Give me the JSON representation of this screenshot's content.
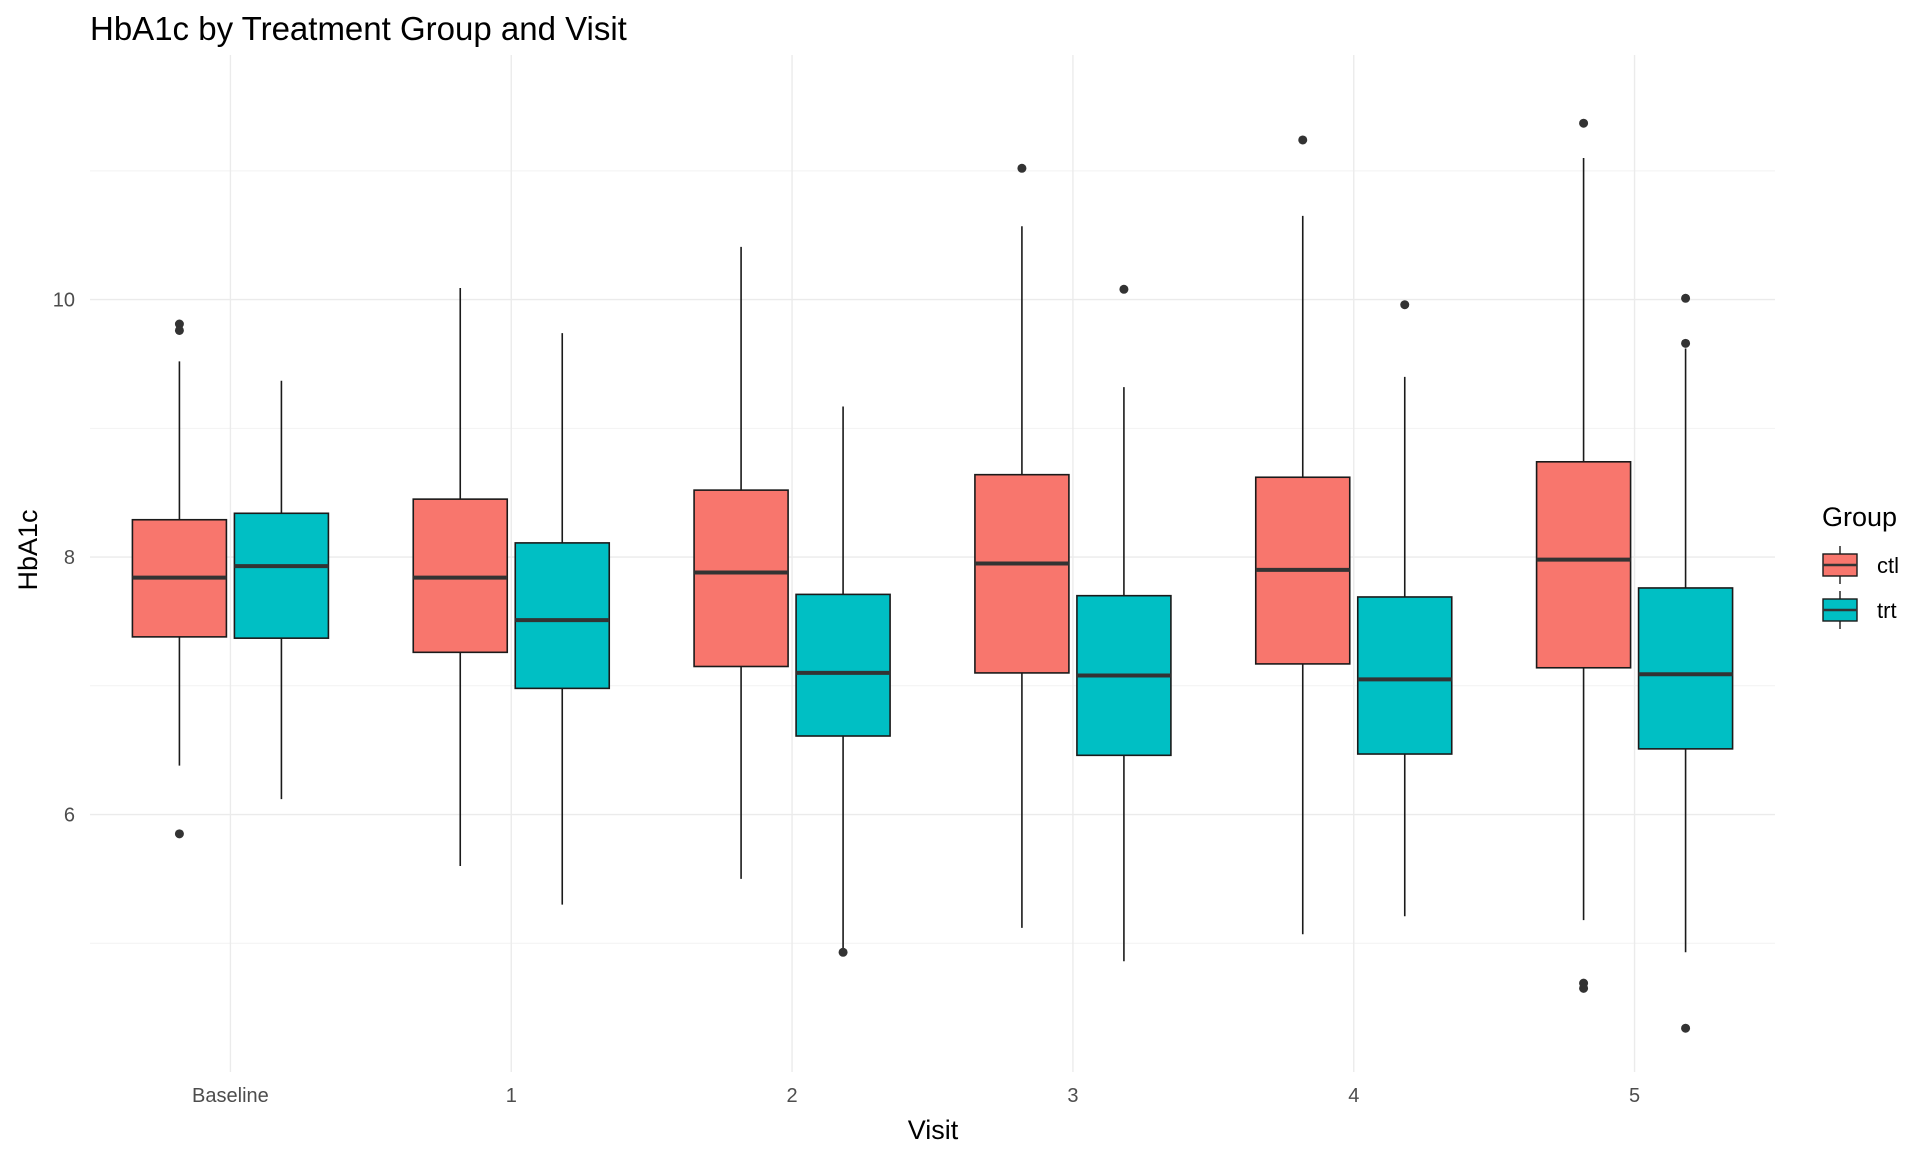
{
  "chart_data": {
    "type": "boxplot",
    "title": "HbA1c by Treatment Group and Visit",
    "xlabel": "Visit",
    "ylabel": "HbA1c",
    "categories": [
      "Baseline",
      "1",
      "2",
      "3",
      "4",
      "5"
    ],
    "ylim": [
      4.0,
      11.9
    ],
    "y_ticks": [
      6,
      8,
      10
    ],
    "grid": true,
    "legend": {
      "title": "Group",
      "position": "right"
    },
    "series": [
      {
        "name": "ctl",
        "color": "#F8766D",
        "boxes": [
          {
            "min": 6.38,
            "q1": 7.38,
            "median": 7.84,
            "q3": 8.29,
            "max": 9.52,
            "outliers": [
              9.81,
              9.76,
              5.85
            ]
          },
          {
            "min": 5.6,
            "q1": 7.26,
            "median": 7.84,
            "q3": 8.45,
            "max": 10.09,
            "outliers": []
          },
          {
            "min": 5.5,
            "q1": 7.15,
            "median": 7.88,
            "q3": 8.52,
            "max": 10.41,
            "outliers": []
          },
          {
            "min": 5.12,
            "q1": 7.1,
            "median": 7.95,
            "q3": 8.64,
            "max": 10.57,
            "outliers": [
              11.02
            ]
          },
          {
            "min": 5.07,
            "q1": 7.17,
            "median": 7.9,
            "q3": 8.62,
            "max": 10.65,
            "outliers": [
              11.24
            ]
          },
          {
            "min": 5.18,
            "q1": 7.14,
            "median": 7.98,
            "q3": 8.74,
            "max": 11.1,
            "outliers": [
              11.37,
              4.69,
              4.65
            ]
          }
        ]
      },
      {
        "name": "trt",
        "color": "#00BFC4",
        "boxes": [
          {
            "min": 6.12,
            "q1": 7.37,
            "median": 7.93,
            "q3": 8.34,
            "max": 9.37,
            "outliers": []
          },
          {
            "min": 5.3,
            "q1": 6.98,
            "median": 7.51,
            "q3": 8.11,
            "max": 9.74,
            "outliers": []
          },
          {
            "min": 4.95,
            "q1": 6.61,
            "median": 7.1,
            "q3": 7.71,
            "max": 9.17,
            "outliers": [
              4.93
            ]
          },
          {
            "min": 4.86,
            "q1": 6.46,
            "median": 7.08,
            "q3": 7.7,
            "max": 9.32,
            "outliers": [
              10.08
            ]
          },
          {
            "min": 5.21,
            "q1": 6.47,
            "median": 7.05,
            "q3": 7.69,
            "max": 9.4,
            "outliers": [
              9.96
            ]
          },
          {
            "min": 4.93,
            "q1": 6.51,
            "median": 7.09,
            "q3": 7.76,
            "max": 9.62,
            "outliers": [
              10.01,
              9.66,
              4.34
            ]
          }
        ]
      }
    ]
  }
}
